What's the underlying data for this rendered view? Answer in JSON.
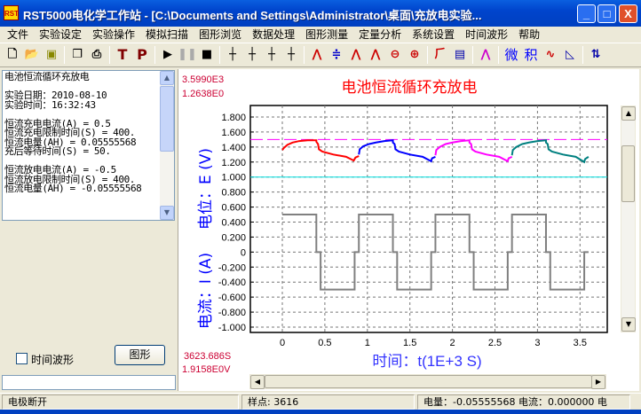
{
  "window": {
    "title": "RST5000电化学工作站 - [C:\\Documents and Settings\\Administrator\\桌面\\充放电实验...",
    "minimize": "_",
    "maximize": "□",
    "close": "X"
  },
  "menu": [
    "文件",
    "实验设定",
    "实验操作",
    "模拟扫描",
    "图形浏览",
    "数据处理",
    "图形测量",
    "定量分析",
    "系统设置",
    "时间波形",
    "帮助"
  ],
  "toolbar": {
    "icons": [
      "new-file",
      "open-folder",
      "save",
      "sep",
      "copy",
      "print",
      "sep",
      "T",
      "P",
      "sep",
      "run",
      "pause",
      "stop",
      "sep",
      "axis-1",
      "axis-2",
      "axis-3",
      "axis-4",
      "sep",
      "peak-height",
      "baseline",
      "peak-blue",
      "peak-red",
      "zoom-out",
      "zoom-in",
      "sep",
      "smooth",
      "data-table",
      "sep",
      "overlay",
      "sep",
      "微",
      "积",
      "curve",
      "measure",
      "sep",
      "info"
    ],
    "text_buttons": {
      "T": "T",
      "P": "P",
      "微": "微",
      "积": "积"
    }
  },
  "info_panel": {
    "text": "电池恒流循环充放电\n\n实验日期：2010-08-10\n实验时间：16:32:43\n\n恒流充电电流(A) = 0.5\n恒流充电限制时间(S) = 400.\n恒流电量(AH) = 0.05555568\n充后等待时间(S) = 50.\n\n恒流放电电流(A) = -0.5\n恒流放电限制时间(S) = 400.\n恒流电量(AH) = -0.05555568"
  },
  "left_controls": {
    "checkbox_label": "时间波形",
    "checkbox_checked": false,
    "graph_button": "图形",
    "text_input": ""
  },
  "chart_readouts": {
    "top1": "3.5990E3",
    "top2": "1.2638E0",
    "bottom1": "3623.686S",
    "bottom2": "1.9158E0V"
  },
  "chart_data": {
    "type": "line",
    "title": "电池恒流循环充放电",
    "xlabel": "时间：t(1E+3 S)",
    "ylabel_potential": "电位：E (V)",
    "ylabel_current": "电流：I (A)",
    "x_ticks": [
      "0",
      "0.5",
      "1",
      "1.5",
      "2",
      "2.5",
      "3",
      "3.5"
    ],
    "y_ticks": [
      "1.800",
      "1.600",
      "1.400",
      "1.200",
      "1.000",
      "0.800",
      "0.600",
      "0.400",
      "0.200",
      "0",
      "-0.200",
      "-0.400",
      "-0.600",
      "-0.800",
      "-1.000"
    ],
    "xlim": [
      -0.33,
      3.86
    ],
    "ylim": [
      -1.07,
      1.95
    ],
    "grid": true,
    "reference_lines": [
      {
        "y": 1.5,
        "color": "#ff00ff",
        "style": "dashed"
      },
      {
        "y": 1.0,
        "color": "#00e0e0",
        "style": "solid"
      }
    ],
    "potential_series": [
      {
        "color": "#ff0000",
        "points": [
          [
            0,
            1.36
          ],
          [
            0.02,
            1.39
          ],
          [
            0.06,
            1.43
          ],
          [
            0.12,
            1.46
          ],
          [
            0.2,
            1.48
          ],
          [
            0.3,
            1.49
          ],
          [
            0.4,
            1.49
          ],
          [
            0.4,
            1.47
          ],
          [
            0.42,
            1.44
          ],
          [
            0.43,
            1.37
          ],
          [
            0.47,
            1.34
          ],
          [
            0.6,
            1.3
          ],
          [
            0.75,
            1.27
          ],
          [
            0.84,
            1.22
          ],
          [
            0.86,
            1.26
          ],
          [
            0.9,
            1.28
          ]
        ]
      },
      {
        "color": "#0000ff",
        "points": [
          [
            0.9,
            1.3
          ],
          [
            0.91,
            1.37
          ],
          [
            0.95,
            1.41
          ],
          [
            1.02,
            1.44
          ],
          [
            1.1,
            1.46
          ],
          [
            1.2,
            1.48
          ],
          [
            1.3,
            1.49
          ],
          [
            1.3,
            1.46
          ],
          [
            1.32,
            1.44
          ],
          [
            1.33,
            1.37
          ],
          [
            1.37,
            1.34
          ],
          [
            1.5,
            1.3
          ],
          [
            1.65,
            1.27
          ],
          [
            1.75,
            1.21
          ],
          [
            1.76,
            1.25
          ],
          [
            1.8,
            1.27
          ]
        ]
      },
      {
        "color": "#ff00ff",
        "points": [
          [
            1.8,
            1.29
          ],
          [
            1.81,
            1.36
          ],
          [
            1.85,
            1.4
          ],
          [
            1.92,
            1.44
          ],
          [
            2.0,
            1.46
          ],
          [
            2.1,
            1.48
          ],
          [
            2.2,
            1.49
          ],
          [
            2.2,
            1.46
          ],
          [
            2.22,
            1.44
          ],
          [
            2.23,
            1.37
          ],
          [
            2.27,
            1.34
          ],
          [
            2.4,
            1.3
          ],
          [
            2.55,
            1.27
          ],
          [
            2.65,
            1.21
          ],
          [
            2.66,
            1.25
          ],
          [
            2.7,
            1.27
          ]
        ]
      },
      {
        "color": "#008080",
        "points": [
          [
            2.7,
            1.29
          ],
          [
            2.71,
            1.36
          ],
          [
            2.75,
            1.4
          ],
          [
            2.82,
            1.44
          ],
          [
            2.9,
            1.46
          ],
          [
            3.0,
            1.48
          ],
          [
            3.1,
            1.49
          ],
          [
            3.1,
            1.46
          ],
          [
            3.12,
            1.44
          ],
          [
            3.13,
            1.37
          ],
          [
            3.17,
            1.34
          ],
          [
            3.3,
            1.3
          ],
          [
            3.45,
            1.27
          ],
          [
            3.55,
            1.2
          ],
          [
            3.56,
            1.24
          ],
          [
            3.6,
            1.27
          ]
        ]
      }
    ],
    "current_series": {
      "color": "#808080",
      "points": [
        [
          0,
          0.5
        ],
        [
          0.4,
          0.5
        ],
        [
          0.4,
          0
        ],
        [
          0.45,
          0
        ],
        [
          0.45,
          -0.5
        ],
        [
          0.85,
          -0.5
        ],
        [
          0.85,
          0
        ],
        [
          0.9,
          0
        ],
        [
          0.9,
          0.5
        ],
        [
          1.3,
          0.5
        ],
        [
          1.3,
          0
        ],
        [
          1.35,
          0
        ],
        [
          1.35,
          -0.5
        ],
        [
          1.75,
          -0.5
        ],
        [
          1.75,
          0
        ],
        [
          1.8,
          0
        ],
        [
          1.8,
          0.5
        ],
        [
          2.2,
          0.5
        ],
        [
          2.2,
          0
        ],
        [
          2.25,
          0
        ],
        [
          2.25,
          -0.5
        ],
        [
          2.65,
          -0.5
        ],
        [
          2.65,
          0
        ],
        [
          2.7,
          0
        ],
        [
          2.7,
          0.5
        ],
        [
          3.1,
          0.5
        ],
        [
          3.1,
          0
        ],
        [
          3.15,
          0
        ],
        [
          3.15,
          -0.5
        ],
        [
          3.55,
          -0.5
        ],
        [
          3.55,
          0
        ],
        [
          3.6,
          0
        ]
      ]
    }
  },
  "status": {
    "state": "电极断开",
    "samples": "样点: 3616",
    "charge_current": "电量：-0.05555568   电流：0.000000   电"
  }
}
